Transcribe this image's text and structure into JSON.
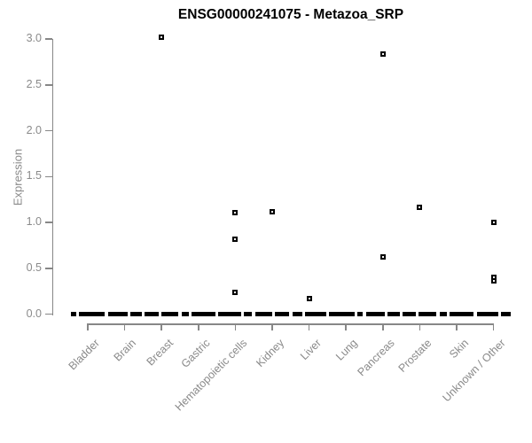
{
  "chart_data": {
    "type": "scatter",
    "subtype": "boxplot-with-outliers",
    "title": "ENSG00000241075 - Metazoa_SRP",
    "xlabel": "",
    "ylabel": "Expression",
    "ylim": [
      0.0,
      3.0
    ],
    "yticks": [
      "0.0",
      "0.5",
      "1.0",
      "1.5",
      "2.0",
      "2.5",
      "3.0"
    ],
    "ytick_values": [
      0.0,
      0.5,
      1.0,
      1.5,
      2.0,
      2.5,
      3.0
    ],
    "grid": "off",
    "legend": "none",
    "marker": "open-square",
    "colors": {
      "points": "#000000",
      "zero_clusters": "#000000",
      "axis_lines": "#878787",
      "axis_text": "#8a8a8a",
      "title_text": "#000000",
      "background": "#ffffff"
    },
    "categories": [
      "Bladder",
      "Brain",
      "Breast",
      "Gastric",
      "Hematopoietic cells",
      "Kidney",
      "Liver",
      "Lung",
      "Pancreas",
      "Prostate",
      "Skin",
      "Unknown / Other"
    ],
    "series": [
      {
        "category": "Bladder",
        "median": 0.0,
        "outliers": []
      },
      {
        "category": "Brain",
        "median": 0.0,
        "outliers": []
      },
      {
        "category": "Breast",
        "median": 0.0,
        "outliers": [
          3.02
        ]
      },
      {
        "category": "Gastric",
        "median": 0.0,
        "outliers": []
      },
      {
        "category": "Hematopoietic cells",
        "median": 0.0,
        "outliers": [
          1.11,
          0.82,
          0.24
        ]
      },
      {
        "category": "Kidney",
        "median": 0.0,
        "outliers": [
          1.12
        ]
      },
      {
        "category": "Liver",
        "median": 0.0,
        "outliers": [
          0.17
        ]
      },
      {
        "category": "Lung",
        "median": 0.0,
        "outliers": []
      },
      {
        "category": "Pancreas",
        "median": 0.0,
        "outliers": [
          2.84,
          0.62
        ]
      },
      {
        "category": "Prostate",
        "median": 0.0,
        "outliers": [
          1.16
        ]
      },
      {
        "category": "Skin",
        "median": 0.0,
        "outliers": []
      },
      {
        "category": "Unknown / Other",
        "median": 0.0,
        "outliers": [
          1.0,
          0.4,
          0.36
        ]
      }
    ]
  }
}
